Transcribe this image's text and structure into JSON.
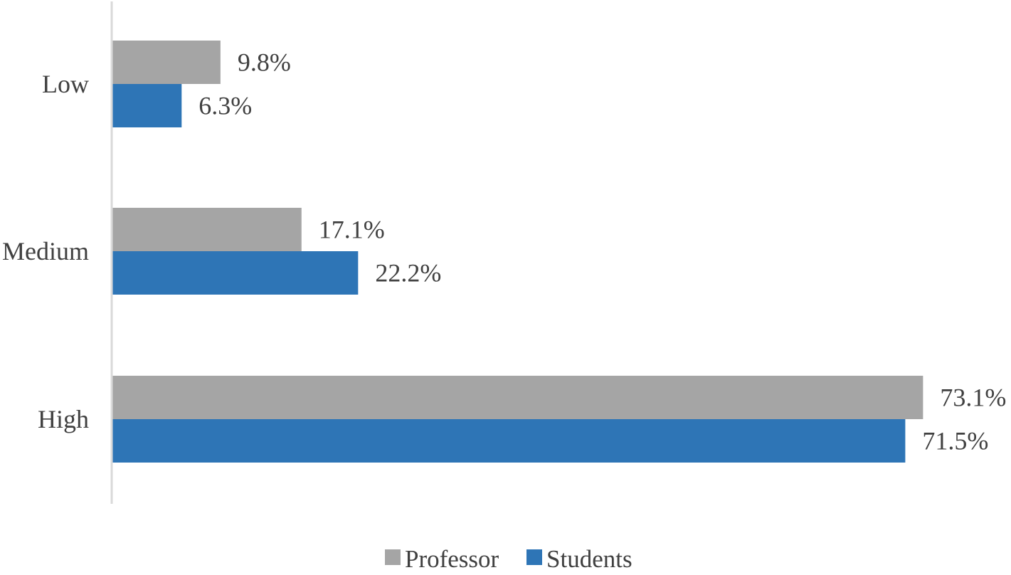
{
  "chart_data": {
    "type": "bar",
    "orientation": "horizontal",
    "categories": [
      "Low",
      "Medium",
      "High"
    ],
    "series": [
      {
        "name": "Professor",
        "values": [
          9.8,
          17.1,
          73.1
        ],
        "labels": [
          "9.8%",
          "17.1%",
          "73.1%"
        ],
        "color": "#a5a5a5"
      },
      {
        "name": "Students",
        "values": [
          6.3,
          22.2,
          71.5
        ],
        "labels": [
          "6.3%",
          "22.2%",
          "71.5%"
        ],
        "color": "#2e75b6"
      }
    ],
    "unit": "%",
    "title": "",
    "xlabel": "",
    "ylabel": "",
    "grid": false,
    "legend_position": "bottom",
    "axis_color": "#d9d9d9"
  }
}
